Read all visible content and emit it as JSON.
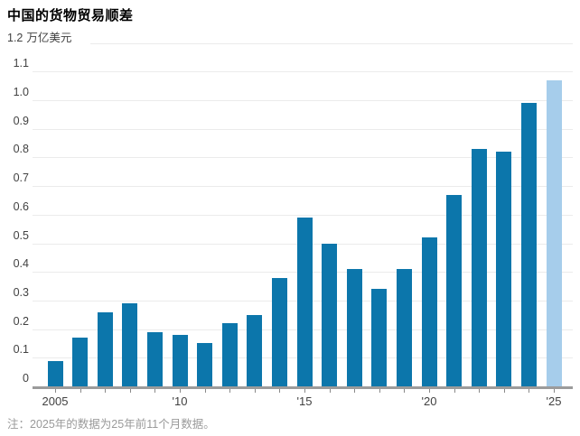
{
  "title": "中国的货物贸易顺差",
  "note": "注：2025年的数据为25年前11个月数据。",
  "y_axis": {
    "top_tick": "1.2",
    "unit": "万亿美元",
    "tick_labels": [
      "1.1",
      "1.0",
      "0.9",
      "0.8",
      "0.7",
      "0.6",
      "0.5",
      "0.4",
      "0.3",
      "0.2",
      "0.1",
      "0"
    ]
  },
  "x_axis": {
    "tick_labels": [
      "2005",
      "'10",
      "'15",
      "'20",
      "'25"
    ],
    "labeled_years": [
      2005,
      2010,
      2015,
      2020,
      2025
    ]
  },
  "colors": {
    "bar": "#0C76AB",
    "bar_highlight": "#A6CDEB",
    "gridline": "#EBEBEB",
    "axis_line": "#9B9B9B",
    "tick": "#8A8A8A",
    "title_text": "#000000",
    "axis_text": "#414141",
    "note_text": "#9A9A9A"
  },
  "chart_data": {
    "type": "bar",
    "title": "中国的货物贸易顺差",
    "ylabel": "万亿美元",
    "xlabel": "",
    "ylim": [
      0,
      1.2
    ],
    "ytick_step": 0.1,
    "grid": true,
    "legend": "none",
    "categories": [
      2005,
      2006,
      2007,
      2008,
      2009,
      2010,
      2011,
      2012,
      2013,
      2014,
      2015,
      2016,
      2017,
      2018,
      2019,
      2020,
      2021,
      2022,
      2023,
      2024,
      2025
    ],
    "values": [
      0.09,
      0.17,
      0.26,
      0.29,
      0.19,
      0.18,
      0.15,
      0.22,
      0.25,
      0.38,
      0.59,
      0.5,
      0.41,
      0.34,
      0.41,
      0.52,
      0.67,
      0.83,
      0.82,
      0.99,
      1.07
    ],
    "highlight_year": 2025,
    "highlight_meaning": "注：2025年的数据为25年前11个月数据。"
  }
}
